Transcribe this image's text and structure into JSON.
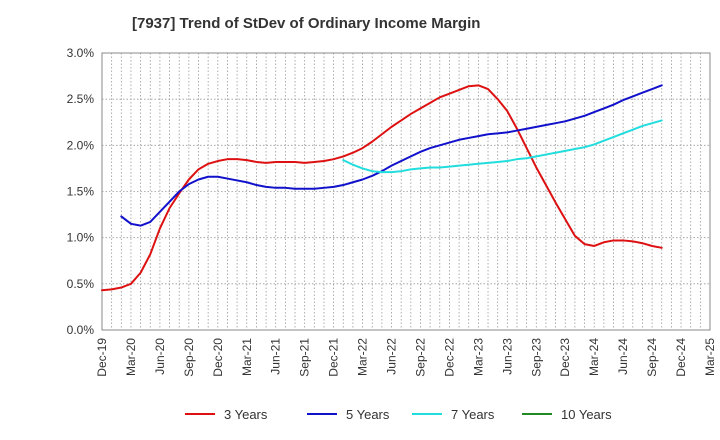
{
  "chart_data": {
    "type": "line",
    "title": "[7937]  Trend of StDev of Ordinary Income Margin",
    "xlabel": "",
    "ylabel": "",
    "x_ticks": [
      "Dec-19",
      "Mar-20",
      "Jun-20",
      "Sep-20",
      "Dec-20",
      "Mar-21",
      "Jun-21",
      "Sep-21",
      "Dec-21",
      "Mar-22",
      "Jun-22",
      "Sep-22",
      "Dec-22",
      "Mar-23",
      "Jun-23",
      "Sep-23",
      "Dec-23",
      "Mar-24",
      "Jun-24",
      "Sep-24",
      "Dec-24",
      "Mar-25"
    ],
    "y_ticks": [
      "0.0%",
      "0.5%",
      "1.0%",
      "1.5%",
      "2.0%",
      "2.5%",
      "3.0%"
    ],
    "ylim": [
      0,
      3.0
    ],
    "grid": true,
    "legend_position": "bottom",
    "series": [
      {
        "name": "3 Years",
        "color": "#dd1111",
        "points": [
          [
            0,
            0.43
          ],
          [
            1,
            0.44
          ],
          [
            2,
            0.46
          ],
          [
            3,
            0.5
          ],
          [
            4,
            0.62
          ],
          [
            5,
            0.82
          ],
          [
            6,
            1.1
          ],
          [
            7,
            1.32
          ],
          [
            8,
            1.48
          ],
          [
            9,
            1.63
          ],
          [
            10,
            1.74
          ],
          [
            11,
            1.8
          ],
          [
            12,
            1.83
          ],
          [
            13,
            1.85
          ],
          [
            14,
            1.85
          ],
          [
            15,
            1.84
          ],
          [
            16,
            1.82
          ],
          [
            17,
            1.81
          ],
          [
            18,
            1.82
          ],
          [
            19,
            1.82
          ],
          [
            20,
            1.82
          ],
          [
            21,
            1.81
          ],
          [
            22,
            1.82
          ],
          [
            23,
            1.83
          ],
          [
            24,
            1.85
          ],
          [
            25,
            1.88
          ],
          [
            26,
            1.92
          ],
          [
            27,
            1.97
          ],
          [
            28,
            2.04
          ],
          [
            29,
            2.12
          ],
          [
            30,
            2.2
          ],
          [
            31,
            2.27
          ],
          [
            32,
            2.34
          ],
          [
            33,
            2.4
          ],
          [
            34,
            2.46
          ],
          [
            35,
            2.52
          ],
          [
            36,
            2.56
          ],
          [
            37,
            2.6
          ],
          [
            38,
            2.64
          ],
          [
            39,
            2.65
          ],
          [
            40,
            2.61
          ],
          [
            41,
            2.5
          ],
          [
            42,
            2.37
          ],
          [
            43,
            2.18
          ],
          [
            44,
            1.97
          ],
          [
            45,
            1.76
          ],
          [
            46,
            1.57
          ],
          [
            47,
            1.38
          ],
          [
            48,
            1.2
          ],
          [
            49,
            1.02
          ],
          [
            50,
            0.93
          ],
          [
            51,
            0.91
          ],
          [
            52,
            0.95
          ],
          [
            53,
            0.97
          ],
          [
            54,
            0.97
          ],
          [
            55,
            0.96
          ],
          [
            56,
            0.94
          ],
          [
            57,
            0.91
          ],
          [
            58,
            0.89
          ]
        ]
      },
      {
        "name": "5 Years",
        "color": "#1111cc",
        "points": [
          [
            2,
            1.23
          ],
          [
            3,
            1.15
          ],
          [
            4,
            1.13
          ],
          [
            5,
            1.17
          ],
          [
            6,
            1.28
          ],
          [
            7,
            1.39
          ],
          [
            8,
            1.5
          ],
          [
            9,
            1.58
          ],
          [
            10,
            1.63
          ],
          [
            11,
            1.66
          ],
          [
            12,
            1.66
          ],
          [
            13,
            1.64
          ],
          [
            14,
            1.62
          ],
          [
            15,
            1.6
          ],
          [
            16,
            1.57
          ],
          [
            17,
            1.55
          ],
          [
            18,
            1.54
          ],
          [
            19,
            1.54
          ],
          [
            20,
            1.53
          ],
          [
            21,
            1.53
          ],
          [
            22,
            1.53
          ],
          [
            23,
            1.54
          ],
          [
            24,
            1.55
          ],
          [
            25,
            1.57
          ],
          [
            26,
            1.6
          ],
          [
            27,
            1.63
          ],
          [
            28,
            1.67
          ],
          [
            29,
            1.72
          ],
          [
            30,
            1.78
          ],
          [
            31,
            1.83
          ],
          [
            32,
            1.88
          ],
          [
            33,
            1.93
          ],
          [
            34,
            1.97
          ],
          [
            35,
            2.0
          ],
          [
            36,
            2.03
          ],
          [
            37,
            2.06
          ],
          [
            38,
            2.08
          ],
          [
            39,
            2.1
          ],
          [
            40,
            2.12
          ],
          [
            41,
            2.13
          ],
          [
            42,
            2.14
          ],
          [
            43,
            2.16
          ],
          [
            44,
            2.18
          ],
          [
            45,
            2.2
          ],
          [
            46,
            2.22
          ],
          [
            47,
            2.24
          ],
          [
            48,
            2.26
          ],
          [
            49,
            2.29
          ],
          [
            50,
            2.32
          ],
          [
            51,
            2.36
          ],
          [
            52,
            2.4
          ],
          [
            53,
            2.44
          ],
          [
            54,
            2.49
          ],
          [
            55,
            2.53
          ],
          [
            56,
            2.57
          ],
          [
            57,
            2.61
          ],
          [
            58,
            2.65
          ]
        ]
      },
      {
        "name": "7 Years",
        "color": "#22dddd",
        "points": [
          [
            25,
            1.84
          ],
          [
            26,
            1.79
          ],
          [
            27,
            1.75
          ],
          [
            28,
            1.72
          ],
          [
            29,
            1.71
          ],
          [
            30,
            1.71
          ],
          [
            31,
            1.72
          ],
          [
            32,
            1.74
          ],
          [
            33,
            1.75
          ],
          [
            34,
            1.76
          ],
          [
            35,
            1.76
          ],
          [
            36,
            1.77
          ],
          [
            37,
            1.78
          ],
          [
            38,
            1.79
          ],
          [
            39,
            1.8
          ],
          [
            40,
            1.81
          ],
          [
            41,
            1.82
          ],
          [
            42,
            1.83
          ],
          [
            43,
            1.85
          ],
          [
            44,
            1.86
          ],
          [
            45,
            1.88
          ],
          [
            46,
            1.9
          ],
          [
            47,
            1.92
          ],
          [
            48,
            1.94
          ],
          [
            49,
            1.96
          ],
          [
            50,
            1.98
          ],
          [
            51,
            2.01
          ],
          [
            52,
            2.05
          ],
          [
            53,
            2.09
          ],
          [
            54,
            2.13
          ],
          [
            55,
            2.17
          ],
          [
            56,
            2.21
          ],
          [
            57,
            2.24
          ],
          [
            58,
            2.27
          ]
        ]
      },
      {
        "name": "10 Years",
        "color": "#228822",
        "points": []
      }
    ]
  }
}
